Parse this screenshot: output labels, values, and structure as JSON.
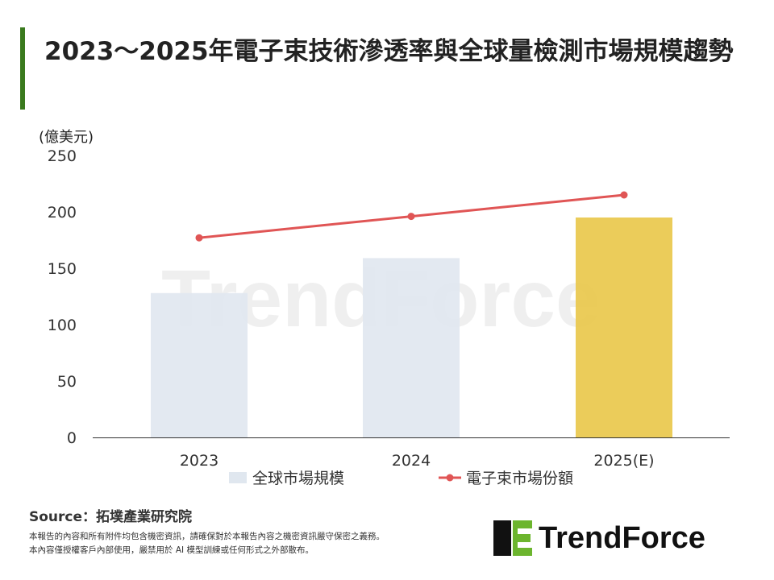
{
  "title": "2023～2025年電子束技術滲透率與全球量檢測市場規模趨勢",
  "chart_data": {
    "type": "bar+line",
    "title": "2023～2025年電子束技術滲透率與全球量檢測市場規模趨勢",
    "ylabel": "(億美元)",
    "ylim": [
      0,
      250
    ],
    "yticks": [
      0,
      50,
      100,
      150,
      200,
      250
    ],
    "categories": [
      "2023",
      "2024",
      "2025(E)"
    ],
    "series": [
      {
        "name": "全球市場規模",
        "type": "bar",
        "values": [
          128,
          159,
          195
        ],
        "colors": [
          "#e0e7ef",
          "#e0e7ef",
          "#e9c648"
        ]
      },
      {
        "name": "電子束市場份額",
        "type": "line",
        "values": [
          177,
          196,
          215
        ],
        "color": "#e05555"
      }
    ],
    "legend": "bottom",
    "grid": false
  },
  "footer": {
    "source": "Source：拓墣產業研究院",
    "note1": "本報告的內容和所有附件均包含機密資訊，請確保對於本報告內容之機密資訊嚴守保密之義務。",
    "note2": "本內容僅授權客戶內部使用，嚴禁用於 AI 模型訓練或任何形式之外部散布。",
    "logo": "TrendForce"
  },
  "watermark": "TrendForce"
}
